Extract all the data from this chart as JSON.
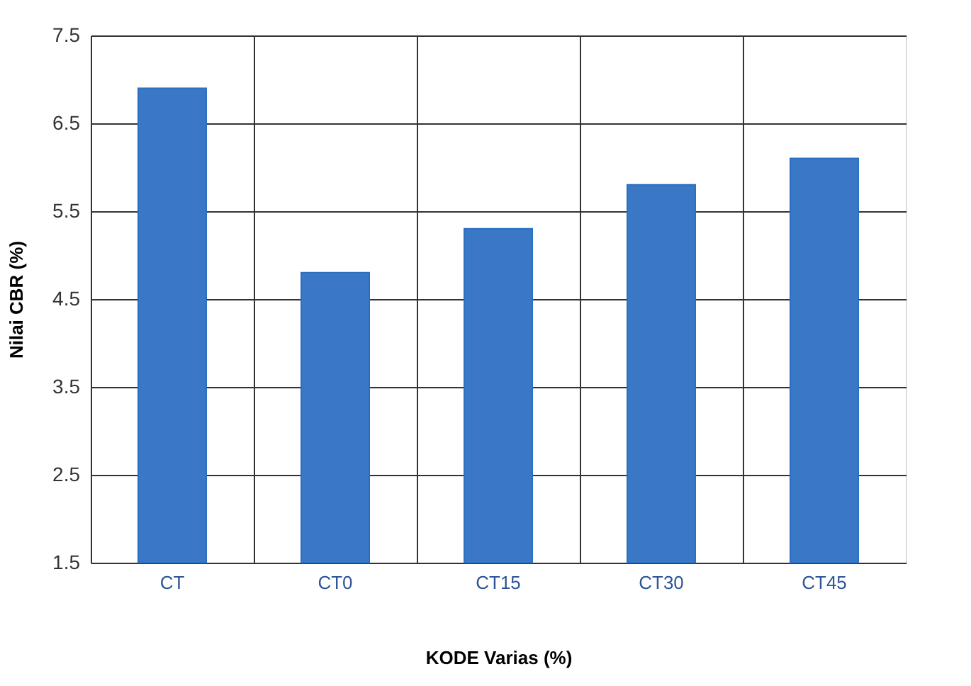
{
  "chart_data": {
    "type": "bar",
    "xlabel": "KODE Varias (%)",
    "ylabel": "Nilai CBR (%)",
    "categories": [
      "CT",
      "CT0",
      "CT15",
      "CT30",
      "CT45"
    ],
    "values": [
      6.9,
      4.8,
      5.3,
      5.8,
      6.1
    ],
    "color": "#3a78c6",
    "ylim": [
      1.5,
      7.5
    ],
    "yticks": [
      1.5,
      2.5,
      3.5,
      4.5,
      5.5,
      6.5,
      7.5
    ],
    "grid": true
  }
}
